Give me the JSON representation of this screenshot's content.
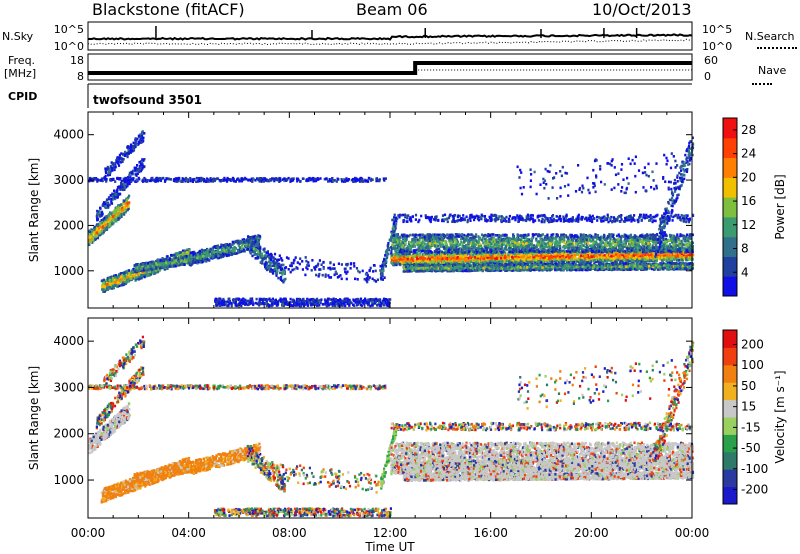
{
  "header": {
    "station": "Blackstone (fitACF)",
    "beam": "Beam 06",
    "date": "10/Oct/2013"
  },
  "top_panels": {
    "nsky_label": "N.Sky",
    "nsearch_label": "N.Search",
    "freq_label": "Freq.",
    "freq_unit": "[MHz]",
    "nave_label": "Nave",
    "cpid_label": "CPID",
    "cpid_value": "twofsound 3501",
    "noise_ticks": [
      "10^5",
      "10^0"
    ],
    "freq_ticks": [
      "18",
      "8"
    ],
    "nave_ticks": [
      "60",
      "0"
    ]
  },
  "chart_data": [
    {
      "type": "heatmap",
      "name": "power",
      "ylabel": "Slant Range [km]",
      "yticks": [
        1000,
        2000,
        3000,
        4000
      ],
      "ylim": [
        180,
        4500
      ],
      "xlim_hours": [
        0,
        24
      ],
      "colorbar_label": "Power [dB]",
      "colorbar_ticks": [
        4,
        8,
        12,
        16,
        20,
        24,
        28
      ],
      "colorbar_range": [
        0,
        30
      ],
      "colors": [
        "#1010e6",
        "#2040a0",
        "#30708a",
        "#3a9a70",
        "#7fbf3f",
        "#f0c000",
        "#ff8000",
        "#ff4000",
        "#f01010"
      ]
    },
    {
      "type": "heatmap",
      "name": "velocity",
      "ylabel": "Slant Range [km]",
      "yticks": [
        1000,
        2000,
        3000,
        4000
      ],
      "ylim": [
        180,
        4500
      ],
      "xlim_hours": [
        0,
        24
      ],
      "xlabel": "Time UT",
      "xticks": [
        "00:00",
        "04:00",
        "08:00",
        "12:00",
        "16:00",
        "20:00",
        "00:00"
      ],
      "colorbar_label": "Velocity [m s⁻¹]",
      "colorbar_ticks": [
        "200",
        "100",
        "50",
        "15",
        "-15",
        "-50",
        "-100",
        "-200"
      ],
      "colors": [
        "#1a1acc",
        "#2a3aa0",
        "#2e7a6a",
        "#2aa04a",
        "#9ad060",
        "#c8c8c8",
        "#f0b020",
        "#f08010",
        "#f04010",
        "#e01010"
      ]
    }
  ]
}
